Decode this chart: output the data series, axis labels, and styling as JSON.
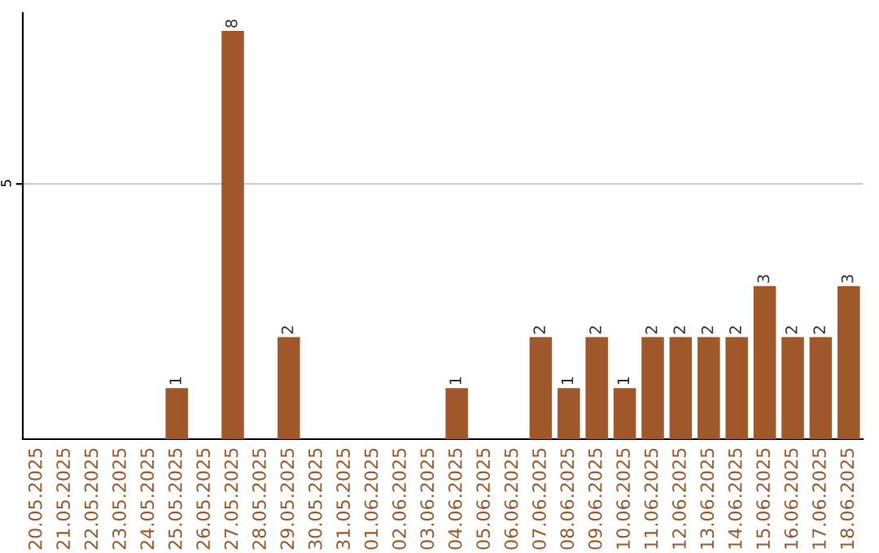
{
  "chart_data": {
    "type": "bar",
    "categories": [
      "20.05.2025",
      "21.05.2025",
      "22.05.2025",
      "23.05.2025",
      "24.05.2025",
      "25.05.2025",
      "26.05.2025",
      "27.05.2025",
      "28.05.2025",
      "29.05.2025",
      "30.05.2025",
      "31.05.2025",
      "01.06.2025",
      "02.06.2025",
      "03.06.2025",
      "04.06.2025",
      "05.06.2025",
      "06.06.2025",
      "07.06.2025",
      "08.06.2025",
      "09.06.2025",
      "10.06.2025",
      "11.06.2025",
      "12.06.2025",
      "13.06.2025",
      "14.06.2025",
      "15.06.2025",
      "16.06.2025",
      "17.06.2025",
      "18.06.2025"
    ],
    "values": [
      0,
      0,
      0,
      0,
      0,
      1,
      0,
      8,
      0,
      2,
      0,
      0,
      0,
      0,
      0,
      1,
      0,
      0,
      2,
      1,
      2,
      1,
      2,
      2,
      2,
      2,
      3,
      2,
      2,
      3
    ],
    "value_labels": [
      null,
      null,
      null,
      null,
      null,
      "1",
      null,
      "8",
      null,
      "2",
      null,
      null,
      null,
      null,
      null,
      "1",
      null,
      null,
      "2",
      "1",
      "2",
      "1",
      "2",
      "2",
      "2",
      "2",
      "3",
      "2",
      "2",
      "3"
    ],
    "color": "#a0582a",
    "ylim": [
      0,
      8.35
    ],
    "yticks": [
      5
    ],
    "grid": "y"
  }
}
